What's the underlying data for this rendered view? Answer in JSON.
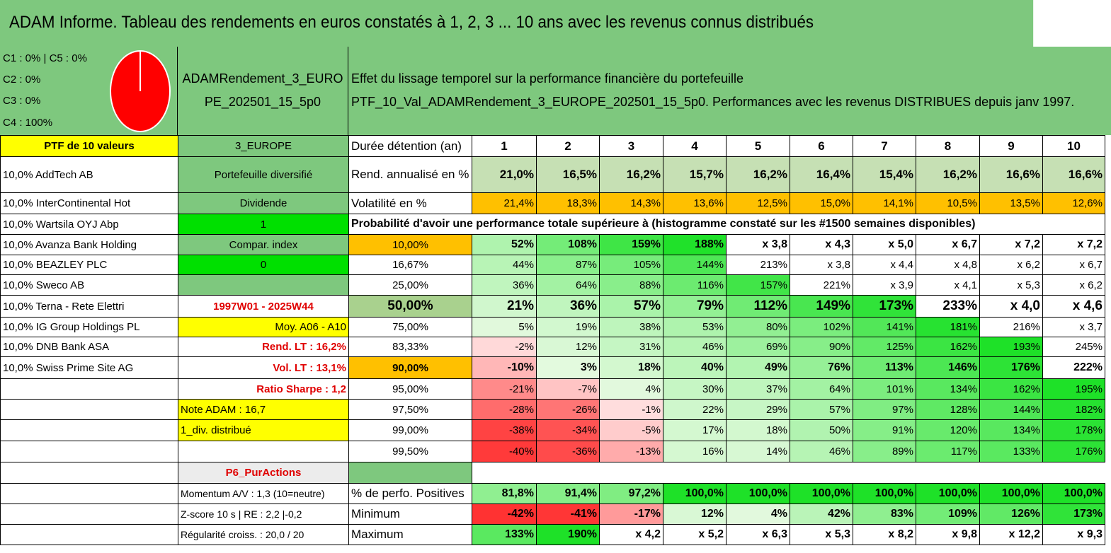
{
  "title": "ADAM Informe. Tableau des rendements en euros constatés à 1, 2, 3 ... 10 ans avec les revenus connus distribués",
  "pie": {
    "lines": [
      "C1 : 0% | C5 : 0%",
      "C2 : 0%",
      "C3 : 0%",
      "C4 : 100%"
    ],
    "fill": "#ff0000"
  },
  "header": {
    "name_line1": "ADAMRendement_3_EURO",
    "name_line2": "PE_202501_15_5p0",
    "desc_line1": "Effet du lissage temporel sur la performance financière du portefeuille",
    "desc_line2": "PTF_10_Val_ADAMRendement_3_EUROPE_202501_15_5p0. Performances avec les revenus DISTRIBUES depuis janv 1997."
  },
  "colors": {
    "title_green": "#7ec87e",
    "yellow": "#ffff00",
    "orange": "#ffc000",
    "bright_green": "#00e000",
    "red_text": "#e00000"
  },
  "rows": [
    {
      "c0": "PTF de 10 valeurs",
      "c1": "3_EUROPE",
      "c2": "Durée détention (an)",
      "v": [
        "1",
        "2",
        "3",
        "4",
        "5",
        "6",
        "7",
        "8",
        "9",
        "10"
      ]
    },
    {
      "c0": "10,0% AddTech AB",
      "c1": "Portefeuille diversifié",
      "c2": "Rend. annualisé en %",
      "v": [
        "21,0%",
        "16,5%",
        "16,2%",
        "15,7%",
        "16,2%",
        "16,4%",
        "15,4%",
        "16,2%",
        "16,6%",
        "16,6%"
      ]
    },
    {
      "c0": "10,0% InterContinental Hot",
      "c1": "Dividende",
      "c2": "Volatilité en %",
      "v": [
        "21,4%",
        "18,3%",
        "14,3%",
        "13,6%",
        "12,5%",
        "15,0%",
        "14,1%",
        "10,5%",
        "13,5%",
        "12,6%"
      ]
    },
    {
      "c0": "10,0% Wartsila OYJ Abp",
      "c1": "1",
      "c2": "Probabilité d'avoir une performance totale supérieure à (histogramme constaté sur les #1500 semaines disponibles)",
      "v": []
    },
    {
      "c0": "10,0% Avanza Bank Holding",
      "c1": "Compar. index",
      "c2": "10,00%",
      "v": [
        "52%",
        "108%",
        "159%",
        "188%",
        "x 3,8",
        "x 4,3",
        "x 5,0",
        "x 6,7",
        "x 7,2",
        "x 7,2"
      ]
    },
    {
      "c0": "10,0% BEAZLEY PLC",
      "c1": "0",
      "c2": "16,67%",
      "v": [
        "44%",
        "87%",
        "105%",
        "144%",
        "213%",
        "x 3,8",
        "x 4,4",
        "x 4,8",
        "x 6,2",
        "x 6,7"
      ]
    },
    {
      "c0": "10,0% Sweco AB",
      "c1": "",
      "c2": "25,00%",
      "v": [
        "36%",
        "64%",
        "88%",
        "116%",
        "157%",
        "221%",
        "x 3,9",
        "x 4,1",
        "x 5,3",
        "x 6,2"
      ]
    },
    {
      "c0": "10,0% Terna - Rete Elettri",
      "c1": "1997W01 - 2025W44",
      "c2": "50,00%",
      "v": [
        "21%",
        "36%",
        "57%",
        "79%",
        "112%",
        "149%",
        "173%",
        "233%",
        "x 4,0",
        "x 4,6"
      ]
    },
    {
      "c0": "10,0% IG Group Holdings PL",
      "c1": "Moy. A06 - A10",
      "c2": "75,00%",
      "v": [
        "5%",
        "19%",
        "38%",
        "53%",
        "80%",
        "102%",
        "141%",
        "181%",
        "216%",
        "x 3,7"
      ]
    },
    {
      "c0": "10,0% DNB Bank ASA",
      "c1": "Rend. LT : 16,2%",
      "c2": "83,33%",
      "v": [
        "-2%",
        "12%",
        "31%",
        "46%",
        "69%",
        "90%",
        "125%",
        "162%",
        "193%",
        "245%"
      ]
    },
    {
      "c0": "10,0% Swiss Prime Site AG",
      "c1": "Vol. LT : 13,1%",
      "c2": "90,00%",
      "v": [
        "-10%",
        "3%",
        "18%",
        "40%",
        "49%",
        "76%",
        "113%",
        "146%",
        "176%",
        "222%"
      ]
    },
    {
      "c0": "",
      "c1": "Ratio Sharpe : 1,2",
      "c2": "95,00%",
      "v": [
        "-21%",
        "-7%",
        "4%",
        "30%",
        "37%",
        "64%",
        "101%",
        "134%",
        "162%",
        "195%"
      ]
    },
    {
      "c0": "",
      "c1": "Note ADAM : 16,7",
      "c2": "97,50%",
      "v": [
        "-28%",
        "-26%",
        "-1%",
        "22%",
        "29%",
        "57%",
        "97%",
        "128%",
        "144%",
        "182%"
      ]
    },
    {
      "c0": "",
      "c1": "1_div. distribué",
      "c2": "99,00%",
      "v": [
        "-38%",
        "-34%",
        "-5%",
        "17%",
        "18%",
        "50%",
        "91%",
        "120%",
        "134%",
        "178%"
      ]
    },
    {
      "c0": "",
      "c1": "",
      "c2": "99,50%",
      "v": [
        "-40%",
        "-36%",
        "-13%",
        "16%",
        "14%",
        "46%",
        "89%",
        "117%",
        "133%",
        "176%"
      ]
    },
    {
      "c0": "",
      "c1": "P6_PurActions",
      "c2": "",
      "v": []
    },
    {
      "c0": "",
      "c1": "Momentum A/V : 1,3 (10=neutre)",
      "c2": "% de perfo. Positives",
      "v": [
        "81,8%",
        "91,4%",
        "97,2%",
        "100,0%",
        "100,0%",
        "100,0%",
        "100,0%",
        "100,0%",
        "100,0%",
        "100,0%"
      ]
    },
    {
      "c0": "",
      "c1": "Z-score 10 s | RE : 2,2 |-0,2",
      "c2": "Minimum",
      "v": [
        "-42%",
        "-41%",
        "-17%",
        "12%",
        "4%",
        "42%",
        "83%",
        "109%",
        "126%",
        "173%"
      ]
    },
    {
      "c0": "",
      "c1": "Régularité croiss. : 20,0 / 20",
      "c2": "Maximum",
      "v": [
        "133%",
        "190%",
        "x 4,2",
        "x 5,2",
        "x 6,3",
        "x 5,3",
        "x 8,2",
        "x 9,8",
        "x 12,2",
        "x 9,3"
      ]
    }
  ]
}
